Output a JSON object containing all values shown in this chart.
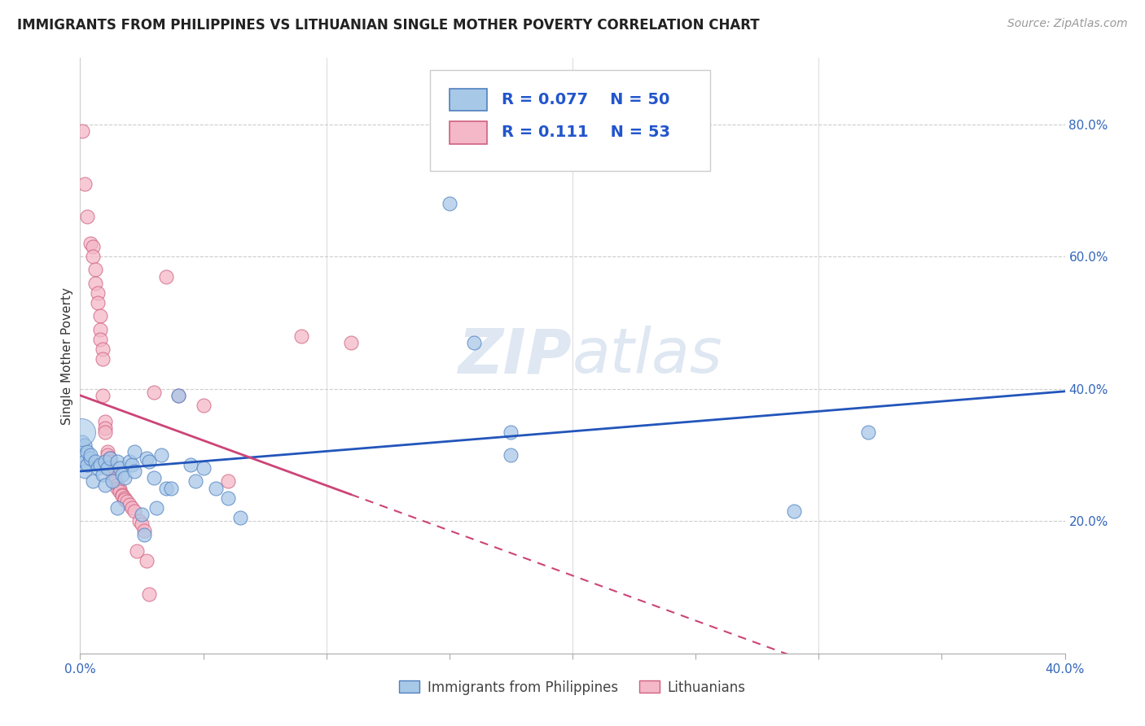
{
  "title": "IMMIGRANTS FROM PHILIPPINES VS LITHUANIAN SINGLE MOTHER POVERTY CORRELATION CHART",
  "source": "Source: ZipAtlas.com",
  "ylabel": "Single Mother Poverty",
  "xlim": [
    0.0,
    0.4
  ],
  "ylim": [
    0.0,
    0.9
  ],
  "blue_R": "0.077",
  "blue_N": "50",
  "pink_R": "0.111",
  "pink_N": "53",
  "blue_color": "#a8c8e8",
  "pink_color": "#f4b8c8",
  "blue_edge_color": "#5080c0",
  "pink_edge_color": "#d06080",
  "blue_line_color": "#2255bb",
  "pink_line_color": "#cc4477",
  "watermark_color": "#c8d8ea",
  "legend_label_blue": "Immigrants from Philippines",
  "legend_label_pink": "Lithuanians",
  "blue_points": [
    [
      0.001,
      0.32
    ],
    [
      0.001,
      0.3
    ],
    [
      0.002,
      0.315
    ],
    [
      0.002,
      0.29
    ],
    [
      0.002,
      0.275
    ],
    [
      0.003,
      0.305
    ],
    [
      0.003,
      0.285
    ],
    [
      0.004,
      0.295
    ],
    [
      0.004,
      0.3
    ],
    [
      0.005,
      0.26
    ],
    [
      0.006,
      0.29
    ],
    [
      0.007,
      0.28
    ],
    [
      0.008,
      0.285
    ],
    [
      0.009,
      0.27
    ],
    [
      0.01,
      0.255
    ],
    [
      0.01,
      0.29
    ],
    [
      0.011,
      0.28
    ],
    [
      0.012,
      0.295
    ],
    [
      0.013,
      0.26
    ],
    [
      0.015,
      0.22
    ],
    [
      0.015,
      0.29
    ],
    [
      0.016,
      0.28
    ],
    [
      0.017,
      0.27
    ],
    [
      0.018,
      0.265
    ],
    [
      0.02,
      0.29
    ],
    [
      0.021,
      0.285
    ],
    [
      0.022,
      0.305
    ],
    [
      0.022,
      0.275
    ],
    [
      0.025,
      0.21
    ],
    [
      0.026,
      0.18
    ],
    [
      0.027,
      0.295
    ],
    [
      0.028,
      0.29
    ],
    [
      0.03,
      0.265
    ],
    [
      0.031,
      0.22
    ],
    [
      0.033,
      0.3
    ],
    [
      0.035,
      0.25
    ],
    [
      0.037,
      0.25
    ],
    [
      0.04,
      0.39
    ],
    [
      0.045,
      0.285
    ],
    [
      0.047,
      0.26
    ],
    [
      0.05,
      0.28
    ],
    [
      0.055,
      0.25
    ],
    [
      0.06,
      0.235
    ],
    [
      0.065,
      0.205
    ],
    [
      0.15,
      0.68
    ],
    [
      0.16,
      0.47
    ],
    [
      0.175,
      0.335
    ],
    [
      0.175,
      0.3
    ],
    [
      0.29,
      0.215
    ],
    [
      0.32,
      0.335
    ]
  ],
  "pink_points": [
    [
      0.001,
      0.79
    ],
    [
      0.002,
      0.71
    ],
    [
      0.003,
      0.66
    ],
    [
      0.004,
      0.62
    ],
    [
      0.005,
      0.615
    ],
    [
      0.005,
      0.6
    ],
    [
      0.006,
      0.58
    ],
    [
      0.006,
      0.56
    ],
    [
      0.007,
      0.545
    ],
    [
      0.007,
      0.53
    ],
    [
      0.008,
      0.51
    ],
    [
      0.008,
      0.49
    ],
    [
      0.008,
      0.475
    ],
    [
      0.009,
      0.46
    ],
    [
      0.009,
      0.445
    ],
    [
      0.009,
      0.39
    ],
    [
      0.01,
      0.35
    ],
    [
      0.01,
      0.34
    ],
    [
      0.01,
      0.335
    ],
    [
      0.011,
      0.305
    ],
    [
      0.011,
      0.3
    ],
    [
      0.012,
      0.295
    ],
    [
      0.012,
      0.29
    ],
    [
      0.012,
      0.28
    ],
    [
      0.013,
      0.275
    ],
    [
      0.013,
      0.27
    ],
    [
      0.014,
      0.265
    ],
    [
      0.014,
      0.26
    ],
    [
      0.015,
      0.255
    ],
    [
      0.015,
      0.25
    ],
    [
      0.016,
      0.248
    ],
    [
      0.016,
      0.245
    ],
    [
      0.017,
      0.24
    ],
    [
      0.017,
      0.238
    ],
    [
      0.018,
      0.235
    ],
    [
      0.018,
      0.232
    ],
    [
      0.019,
      0.23
    ],
    [
      0.02,
      0.225
    ],
    [
      0.021,
      0.22
    ],
    [
      0.022,
      0.215
    ],
    [
      0.023,
      0.155
    ],
    [
      0.024,
      0.2
    ],
    [
      0.025,
      0.195
    ],
    [
      0.026,
      0.185
    ],
    [
      0.027,
      0.14
    ],
    [
      0.028,
      0.09
    ],
    [
      0.03,
      0.395
    ],
    [
      0.035,
      0.57
    ],
    [
      0.04,
      0.39
    ],
    [
      0.05,
      0.375
    ],
    [
      0.06,
      0.26
    ],
    [
      0.09,
      0.48
    ],
    [
      0.11,
      0.47
    ]
  ]
}
